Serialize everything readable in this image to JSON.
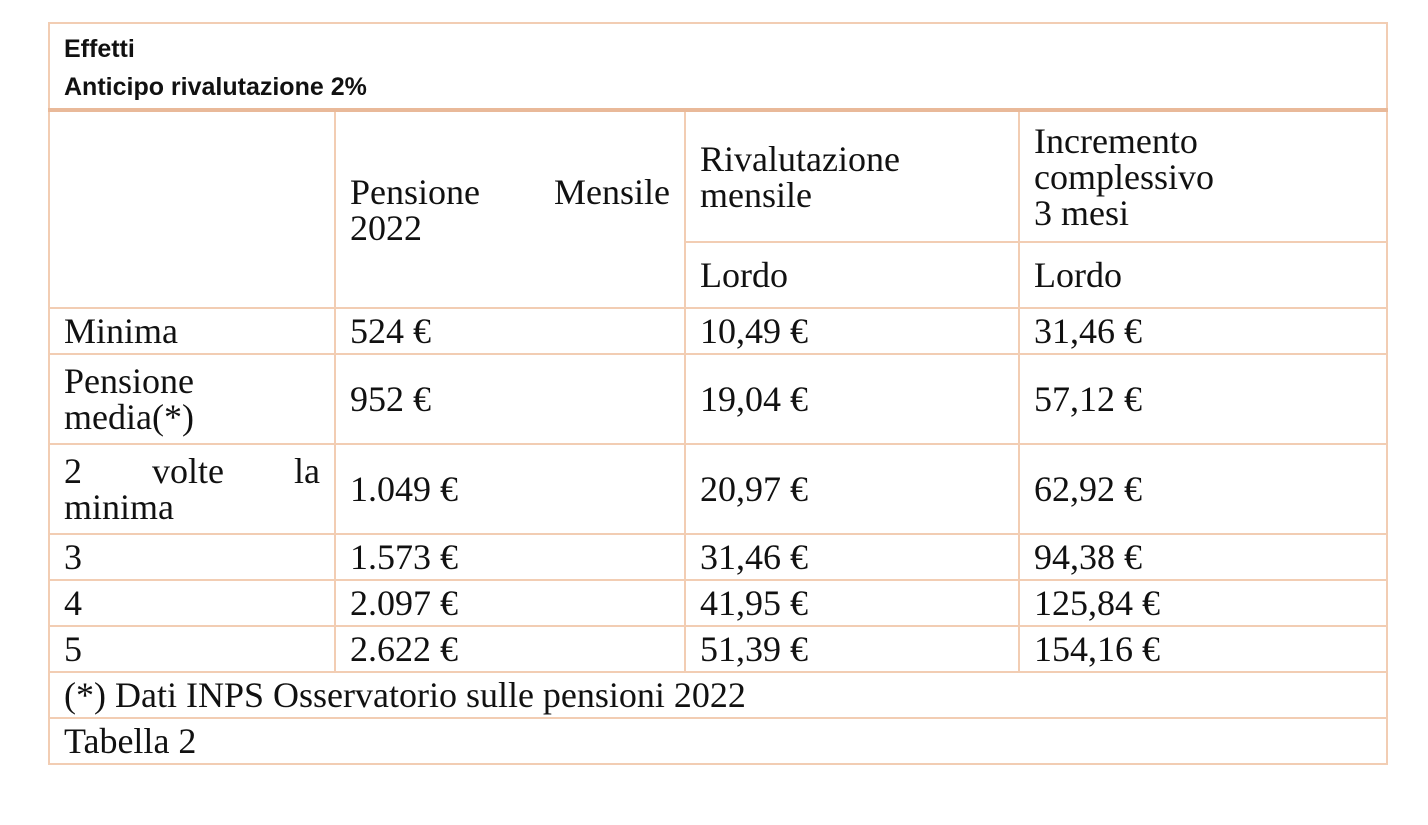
{
  "title": {
    "line1": "Effetti",
    "line2": "Anticipo rivalutazione 2%"
  },
  "headers": {
    "pensione_line1": "Pensione Mensile",
    "pensione_line2": "2022",
    "rivalutazione_line1": "Rivalutazione",
    "rivalutazione_line2": "mensile",
    "incremento_line1": "Incremento",
    "incremento_line2": "complessivo",
    "incremento_line3": "3 mesi",
    "sub_rivalutazione": "Lordo",
    "sub_incremento": "Lordo"
  },
  "rows": [
    {
      "label_line1": "Minima",
      "label_line2": "",
      "pensione": "524 €",
      "rivalutazione": "10,49 €",
      "incremento": "31,46 €"
    },
    {
      "label_line1": "Pensione",
      "label_line2": "media(*)",
      "pensione": "952 €",
      "rivalutazione": "19,04 €",
      "incremento": "57,12 €"
    },
    {
      "label_line1": "2 volte la",
      "label_line2": "minima",
      "pensione": "1.049 €",
      "rivalutazione": "20,97 €",
      "incremento": "62,92 €"
    },
    {
      "label_line1": "3",
      "label_line2": "",
      "pensione": "1.573 €",
      "rivalutazione": "31,46 €",
      "incremento": "94,38 €"
    },
    {
      "label_line1": "4",
      "label_line2": "",
      "pensione": "2.097 €",
      "rivalutazione": "41,95 €",
      "incremento": "125,84 €"
    },
    {
      "label_line1": "5",
      "label_line2": "",
      "pensione": "2.622 €",
      "rivalutazione": "51,39 €",
      "incremento": "154,16 €"
    }
  ],
  "footer": {
    "note": "(*) Dati INPS Osservatorio sulle pensioni 2022",
    "caption": "Tabella 2"
  }
}
